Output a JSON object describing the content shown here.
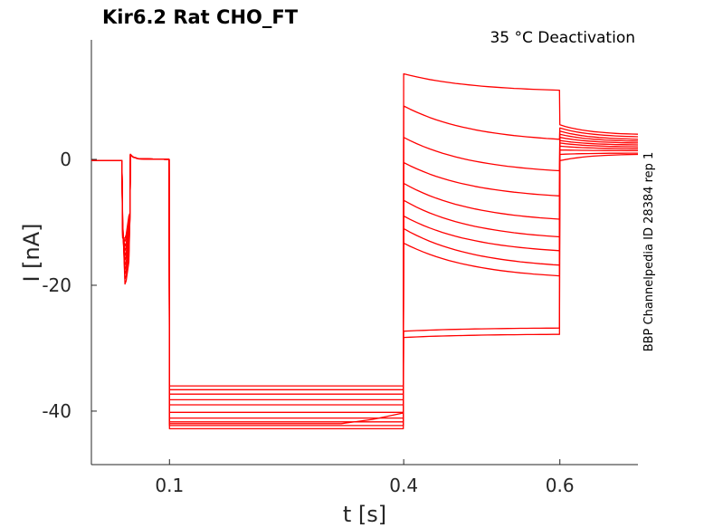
{
  "chart_data": {
    "type": "line",
    "title": "Kir6.2  Rat  CHO_FT",
    "subtitle": "35 °C  Deactivation",
    "side_note": "BBP Channelpedia ID 28384 rep 1",
    "xlabel": "t [s]",
    "ylabel": "I [nA]",
    "xlim": [
      0.0,
      0.7
    ],
    "ylim": [
      -48.5,
      19
    ],
    "x_ticks": [
      0.1,
      0.4,
      0.6
    ],
    "x_tick_labels": [
      "0.1",
      "0.4",
      "0.6"
    ],
    "y_ticks": [
      0,
      -20,
      -40
    ],
    "y_tick_labels": [
      "0",
      "-20",
      "-40"
    ],
    "grid": false,
    "legend": "none",
    "trace_color": "#ff0000",
    "protocol_times": {
      "pulse_start": 0.04,
      "pulse_end": 0.05,
      "step_start": 0.1,
      "test_start": 0.4,
      "tail_start": 0.6,
      "end": 0.7
    },
    "series": [
      {
        "pulse_peak": -19.8,
        "step": -42.8,
        "test_start": 13.6,
        "test_end": 11.0,
        "tail_start": 5.5,
        "tail_end": 4.0
      },
      {
        "pulse_peak": -19.0,
        "step": -42.3,
        "test_start": 8.5,
        "test_end": 3.2,
        "tail_start": 5.0,
        "tail_end": 3.6
      },
      {
        "pulse_peak": -18.2,
        "step": -41.7,
        "test_start": 3.5,
        "test_end": -1.8,
        "tail_start": 4.5,
        "tail_end": 3.2
      },
      {
        "pulse_peak": -17.5,
        "step": -41.1,
        "test_start": -0.5,
        "test_end": -5.8,
        "tail_start": 4.0,
        "tail_end": 2.9
      },
      {
        "pulse_peak": -16.8,
        "step": -40.2,
        "test_start": -3.8,
        "test_end": -9.5,
        "tail_start": 3.5,
        "tail_end": 2.6
      },
      {
        "pulse_peak": -16.0,
        "step": -39.0,
        "test_start": -6.5,
        "test_end": -12.3,
        "tail_start": 3.0,
        "tail_end": 2.3
      },
      {
        "pulse_peak": -15.3,
        "step": -38.2,
        "test_start": -9.0,
        "test_end": -14.5,
        "tail_start": 2.6,
        "tail_end": 2.0
      },
      {
        "pulse_peak": -14.5,
        "step": -37.3,
        "test_start": -11.0,
        "test_end": -16.8,
        "tail_start": 2.1,
        "tail_end": 1.7
      },
      {
        "pulse_peak": -13.8,
        "step": -36.6,
        "test_start": -13.3,
        "test_end": -18.5,
        "tail_start": 1.5,
        "tail_end": 1.4
      },
      {
        "pulse_peak": -13.0,
        "step": -36.0,
        "test_start": -27.3,
        "test_end": -26.8,
        "tail_start": 0.8,
        "tail_end": 1.0
      },
      {
        "pulse_peak": -12.5,
        "step": -42.0,
        "step_end": -40.3,
        "test_start": -28.3,
        "test_end": -27.8,
        "tail_start": -0.2,
        "tail_end": 0.8
      }
    ]
  }
}
